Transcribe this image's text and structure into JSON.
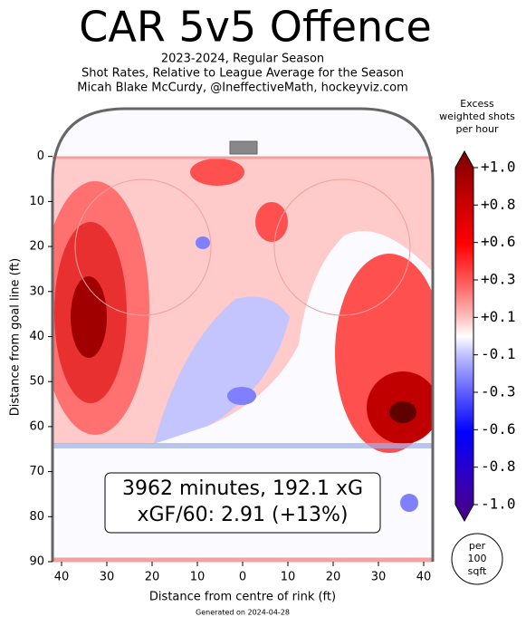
{
  "chart_data": {
    "type": "heatmap",
    "title": "CAR 5v5 Offence",
    "subtitle": [
      "2023-2024, Regular Season",
      "Shot Rates, Relative to League Average for the Season",
      "Micah Blake McCurdy, @IneffectiveMath, hockeyviz.com"
    ],
    "xlabel": "Distance from centre of rink (ft)",
    "ylabel": "Distance from goal line (ft)",
    "xlim": [
      -42,
      42
    ],
    "xticks": [
      {
        "value": -40,
        "label": "40"
      },
      {
        "value": -30,
        "label": "30"
      },
      {
        "value": -20,
        "label": "20"
      },
      {
        "value": -10,
        "label": "10"
      },
      0,
      10,
      20,
      30,
      40
    ],
    "ylim": [
      -11,
      90
    ],
    "yticks": [
      0,
      10,
      20,
      30,
      40,
      50,
      60,
      70,
      80,
      90
    ],
    "colorbar_title": [
      "Excess",
      "weighted shots",
      "per hour"
    ],
    "colorbar_ticks": [
      {
        "value": 1.0,
        "label": "+1.0"
      },
      {
        "value": 0.8,
        "label": "+0.8"
      },
      {
        "value": 0.6,
        "label": "+0.6"
      },
      {
        "value": 0.3,
        "label": "+0.3"
      },
      {
        "value": 0.1,
        "label": "+0.1"
      },
      {
        "value": -0.1,
        "label": "-0.1"
      },
      {
        "value": -0.3,
        "label": "-0.3"
      },
      {
        "value": -0.6,
        "label": "-0.6"
      },
      {
        "value": -0.8,
        "label": "-0.8"
      },
      {
        "value": -1.0,
        "label": "-1.0"
      }
    ],
    "annotation": [
      "3962 minutes, 192.1 xG",
      "xGF/60: 2.91 (+13%)"
    ],
    "badge": [
      "per",
      "100",
      "sqft"
    ],
    "footer": "Generated on 2024-04-28"
  }
}
